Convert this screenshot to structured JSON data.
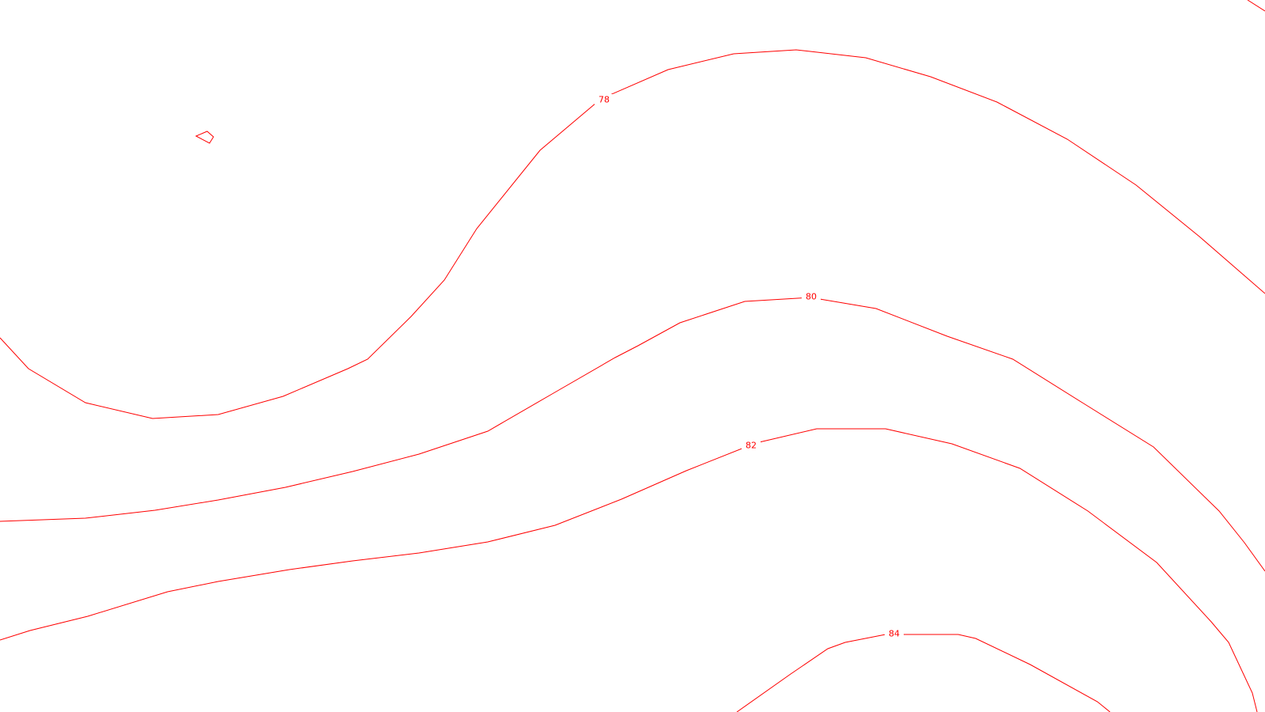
{
  "map": {
    "background_color": "#ffffff",
    "contour_color": "#ff0000",
    "contours": [
      {
        "label": "78"
      },
      {
        "label": "80"
      },
      {
        "label": "82"
      },
      {
        "label": "84"
      }
    ]
  }
}
